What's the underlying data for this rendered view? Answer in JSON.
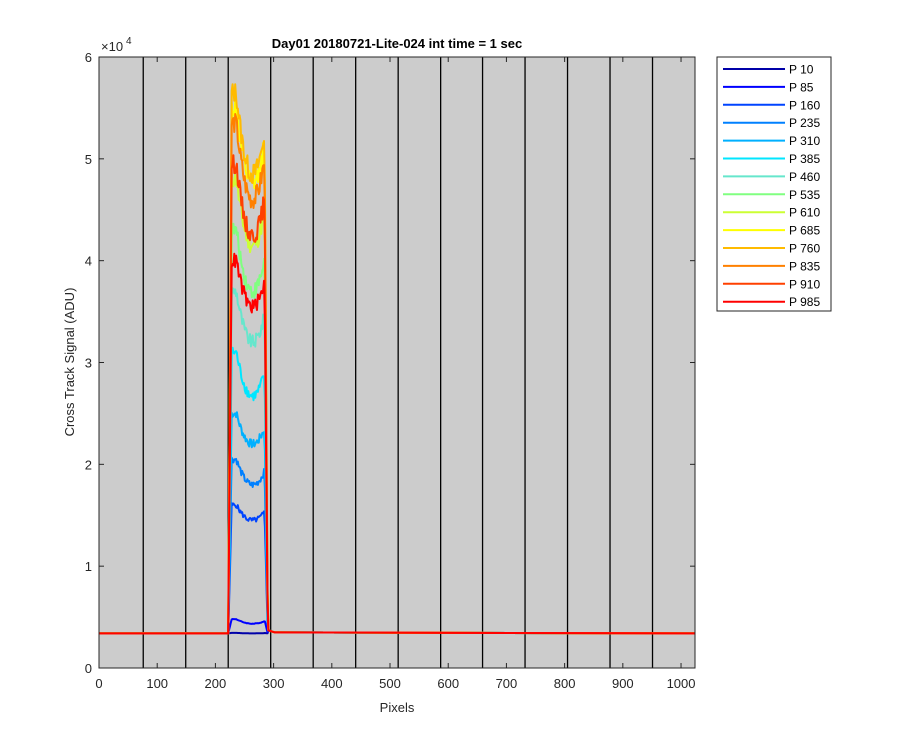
{
  "chart_data": {
    "type": "line",
    "title": "Day01 20180721-Lite-024 int time = 1 sec",
    "xlabel": "Pixels",
    "ylabel": "Cross Track Signal (ADU)",
    "xlim": [
      0,
      1024
    ],
    "ylim": [
      0,
      60000
    ],
    "y_exponent_label": "×10",
    "y_exponent_power": "4",
    "xticks": [
      0,
      100,
      200,
      300,
      400,
      500,
      600,
      700,
      800,
      900,
      1000
    ],
    "xtick_labels": [
      "0",
      "100",
      "200",
      "300",
      "400",
      "500",
      "600",
      "700",
      "800",
      "900",
      "1000"
    ],
    "yticks": [
      0,
      10000,
      20000,
      30000,
      40000,
      50000,
      60000
    ],
    "ytick_labels": [
      "0",
      "1",
      "2",
      "3",
      "4",
      "5",
      "6"
    ],
    "plot_background": "#cccccc",
    "grid": false,
    "legend_position": "outside-top-right",
    "vertical_boundaries_x": [
      76,
      149,
      222,
      295,
      368,
      441,
      514,
      587,
      659,
      732,
      805,
      878,
      951
    ],
    "signal_window_x": [
      222,
      290
    ],
    "baseline": 3400,
    "series": [
      {
        "name": "P 10",
        "color": "#0000a8",
        "peak": 3450,
        "dip": 3400
      },
      {
        "name": "P 85",
        "color": "#0000ff",
        "peak": 4800,
        "dip": 4350
      },
      {
        "name": "P 160",
        "color": "#0044ff",
        "peak": 16000,
        "dip": 14500
      },
      {
        "name": "P 235",
        "color": "#0080ff",
        "peak": 20500,
        "dip": 18000
      },
      {
        "name": "P 310",
        "color": "#00b0ff",
        "peak": 25000,
        "dip": 22000
      },
      {
        "name": "P 385",
        "color": "#00e6ff",
        "peak": 31000,
        "dip": 26700
      },
      {
        "name": "P 460",
        "color": "#66e6cc",
        "peak": 37000,
        "dip": 32000
      },
      {
        "name": "P 535",
        "color": "#80ff80",
        "peak": 43000,
        "dip": 37000
      },
      {
        "name": "P 610",
        "color": "#ccff33",
        "peak": 48000,
        "dip": 41500
      },
      {
        "name": "P 685",
        "color": "#ffff00",
        "peak": 55000,
        "dip": 47500
      },
      {
        "name": "P 760",
        "color": "#ffbb00",
        "peak": 56500,
        "dip": 48500
      },
      {
        "name": "P 835",
        "color": "#ff8000",
        "peak": 53500,
        "dip": 46000
      },
      {
        "name": "P 910",
        "color": "#ff4000",
        "peak": 49500,
        "dip": 42500
      },
      {
        "name": "P 985",
        "color": "#ff0000",
        "peak": 40000,
        "dip": 35500
      }
    ]
  }
}
